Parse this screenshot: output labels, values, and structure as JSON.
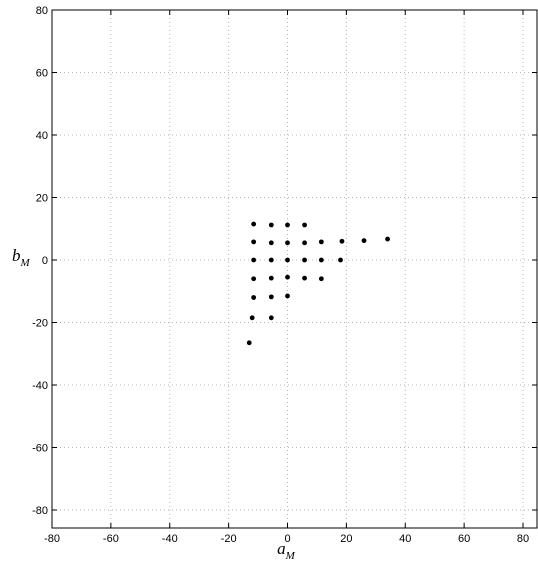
{
  "chart_data": {
    "type": "scatter",
    "title": "",
    "xlabel": "a",
    "xlabel_sub": "M",
    "ylabel": "b",
    "ylabel_sub": "M",
    "xlim": [
      -80,
      85
    ],
    "ylim": [
      -86,
      80
    ],
    "xticks": [
      -80,
      -60,
      -40,
      -20,
      0,
      20,
      40,
      60,
      80
    ],
    "yticks": [
      -80,
      -60,
      -40,
      -20,
      0,
      20,
      40,
      60,
      80
    ],
    "grid": true,
    "grid_style": "dotted",
    "marker_color": "#000000",
    "series": [
      {
        "points": [
          {
            "x": -11.5,
            "y": 11.5
          },
          {
            "x": -5.5,
            "y": 11.2
          },
          {
            "x": 0,
            "y": 11.2
          },
          {
            "x": 5.8,
            "y": 11.2
          },
          {
            "x": -11.5,
            "y": 5.8
          },
          {
            "x": -5.5,
            "y": 5.5
          },
          {
            "x": 0,
            "y": 5.5
          },
          {
            "x": 5.8,
            "y": 5.5
          },
          {
            "x": 11.5,
            "y": 5.8
          },
          {
            "x": 18.5,
            "y": 6
          },
          {
            "x": 26,
            "y": 6.2
          },
          {
            "x": 34,
            "y": 6.7
          },
          {
            "x": -11.5,
            "y": 0
          },
          {
            "x": -5.5,
            "y": 0
          },
          {
            "x": 0,
            "y": 0
          },
          {
            "x": 5.8,
            "y": 0
          },
          {
            "x": 11.5,
            "y": 0
          },
          {
            "x": 18,
            "y": 0
          },
          {
            "x": -11.5,
            "y": -6
          },
          {
            "x": -5.5,
            "y": -5.8
          },
          {
            "x": 0,
            "y": -5.5
          },
          {
            "x": 5.8,
            "y": -5.8
          },
          {
            "x": 11.5,
            "y": -6
          },
          {
            "x": -11.5,
            "y": -12
          },
          {
            "x": -5.5,
            "y": -11.8
          },
          {
            "x": 0,
            "y": -11.5
          },
          {
            "x": -12,
            "y": -18.5
          },
          {
            "x": -5.5,
            "y": -18.5
          },
          {
            "x": -13,
            "y": -26.5
          }
        ]
      }
    ]
  }
}
